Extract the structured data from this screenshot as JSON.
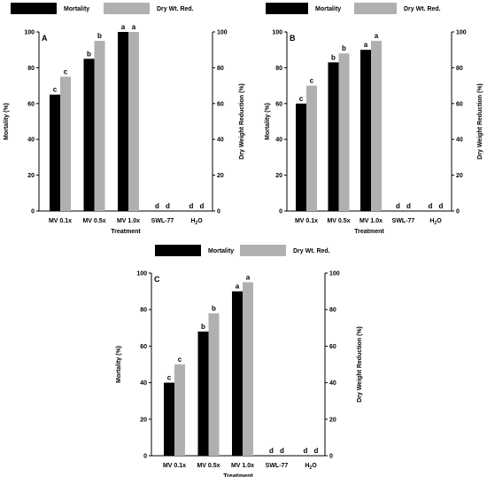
{
  "chart_data": [
    {
      "type": "bar",
      "panel_label": "A",
      "categories": [
        "MV 0.1x",
        "MV 0.5x",
        "MV 1.0x",
        "SWL-77",
        "H2O"
      ],
      "xlabel": "Treatment",
      "ylabel": "Mortality (%)",
      "y2label": "Dry Weight Reduction (%)",
      "ylim": [
        0,
        100
      ],
      "yticks": [
        0,
        20,
        40,
        60,
        80,
        100
      ],
      "legend": "top",
      "series": [
        {
          "name": "Mortality",
          "color": "#000000",
          "values": [
            65,
            85,
            100,
            0,
            0
          ],
          "letters": [
            "c",
            "b",
            "a",
            "d",
            "d"
          ]
        },
        {
          "name": "Dry Wt. Red.",
          "color": "#b0b0b0",
          "values": [
            75,
            95,
            100,
            0,
            0
          ],
          "letters": [
            "c",
            "b",
            "a",
            "d",
            "d"
          ]
        }
      ]
    },
    {
      "type": "bar",
      "panel_label": "B",
      "categories": [
        "MV 0.1x",
        "MV 0.5x",
        "MV 1.0x",
        "SWL-77",
        "H2O"
      ],
      "xlabel": "Treatment",
      "ylabel": "Mortality (%)",
      "y2label": "Dry Weight Reduction (%)",
      "ylim": [
        0,
        100
      ],
      "yticks": [
        0,
        20,
        40,
        60,
        80,
        100
      ],
      "legend": "top",
      "series": [
        {
          "name": "Mortality",
          "color": "#000000",
          "values": [
            60,
            83,
            90,
            0,
            0
          ],
          "letters": [
            "c",
            "b",
            "a",
            "d",
            "d"
          ]
        },
        {
          "name": "Dry Wt. Red.",
          "color": "#b0b0b0",
          "values": [
            70,
            88,
            95,
            0,
            0
          ],
          "letters": [
            "c",
            "b",
            "a",
            "d",
            "d"
          ]
        }
      ]
    },
    {
      "type": "bar",
      "panel_label": "C",
      "categories": [
        "MV 0.1x",
        "MV 0.5x",
        "MV 1.0x",
        "SWL-77",
        "H2O"
      ],
      "xlabel": "Treatment",
      "ylabel": "Mortality (%)",
      "y2label": "Dry Weight Reduction (%)",
      "ylim": [
        0,
        100
      ],
      "yticks": [
        0,
        20,
        40,
        60,
        80,
        100
      ],
      "legend": "top",
      "series": [
        {
          "name": "Mortality",
          "color": "#000000",
          "values": [
            40,
            68,
            90,
            0,
            0
          ],
          "letters": [
            "c",
            "b",
            "a",
            "d",
            "d"
          ]
        },
        {
          "name": "Dry Wt. Red.",
          "color": "#b0b0b0",
          "values": [
            50,
            78,
            95,
            0,
            0
          ],
          "letters": [
            "c",
            "b",
            "a",
            "d",
            "d"
          ]
        }
      ]
    }
  ]
}
